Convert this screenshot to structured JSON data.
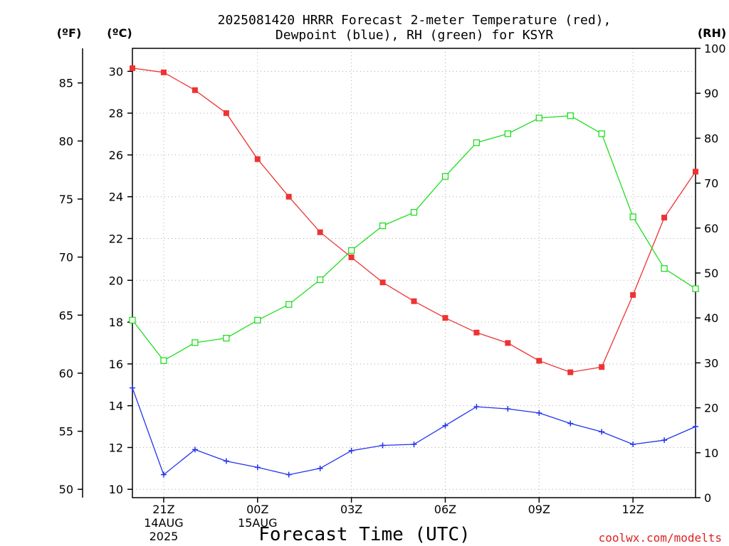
{
  "chart_data": {
    "type": "line",
    "title": "2025081420 HRRR Forecast 2-meter Temperature (red),",
    "subtitle": "Dewpoint (blue), RH (green) for KSYR",
    "xlabel": "Forecast Time (UTC)",
    "watermark": "coolwx.com/modelts",
    "units": {
      "fahrenheit": "(ºF)",
      "celsius": "(ºC)",
      "rh": "(RH)"
    },
    "celsius_axis": {
      "ylim": [
        9.6,
        31.1
      ],
      "ticks": [
        10,
        12,
        14,
        16,
        18,
        20,
        22,
        24,
        26,
        28,
        30
      ]
    },
    "fahrenheit_axis": {
      "ticks": [
        50,
        55,
        60,
        65,
        70,
        75,
        80,
        85
      ]
    },
    "rh_axis": {
      "ylim": [
        0,
        100
      ],
      "ticks": [
        0,
        10,
        20,
        30,
        40,
        50,
        60,
        70,
        80,
        90,
        100
      ]
    },
    "grid": true,
    "x": [
      0,
      1,
      2,
      3,
      4,
      5,
      6,
      7,
      8,
      9,
      10,
      11,
      12,
      13,
      14,
      15,
      16,
      17,
      18
    ],
    "xlim": [
      0,
      18
    ],
    "x_ticks": [
      {
        "x": 1,
        "label": "21Z",
        "sub1": "14AUG",
        "sub2": "2025"
      },
      {
        "x": 4,
        "label": "00Z",
        "sub1": "15AUG",
        "sub2": ""
      },
      {
        "x": 7,
        "label": "03Z",
        "sub1": "",
        "sub2": ""
      },
      {
        "x": 10,
        "label": "06Z",
        "sub1": "",
        "sub2": ""
      },
      {
        "x": 13,
        "label": "09Z",
        "sub1": "",
        "sub2": ""
      },
      {
        "x": 16,
        "label": "12Z",
        "sub1": "",
        "sub2": ""
      }
    ],
    "series": [
      {
        "name": "Temperature",
        "axis": "celsius",
        "color": "#ee3333",
        "marker": "square",
        "values": [
          30.15,
          29.95,
          29.1,
          28.0,
          25.8,
          24.0,
          22.3,
          21.1,
          19.9,
          19.0,
          18.2,
          17.5,
          17.0,
          16.15,
          15.6,
          15.85,
          19.3,
          23.0,
          25.2
        ]
      },
      {
        "name": "Dewpoint",
        "axis": "celsius",
        "color": "#2233ee",
        "marker": "plus",
        "values": [
          14.85,
          10.7,
          11.9,
          11.35,
          11.05,
          10.7,
          11.0,
          11.85,
          12.1,
          12.15,
          13.05,
          13.95,
          13.85,
          13.65,
          13.15,
          12.75,
          12.15,
          12.35,
          13.0
        ]
      },
      {
        "name": "RH",
        "axis": "rh",
        "color": "#22dd22",
        "marker": "open-square",
        "values": [
          39.5,
          30.5,
          34.5,
          35.5,
          39.5,
          43.0,
          48.5,
          55.0,
          60.5,
          63.5,
          71.5,
          79.0,
          81.0,
          84.5,
          85.0,
          81.0,
          62.5,
          51.0,
          46.5
        ]
      }
    ]
  }
}
